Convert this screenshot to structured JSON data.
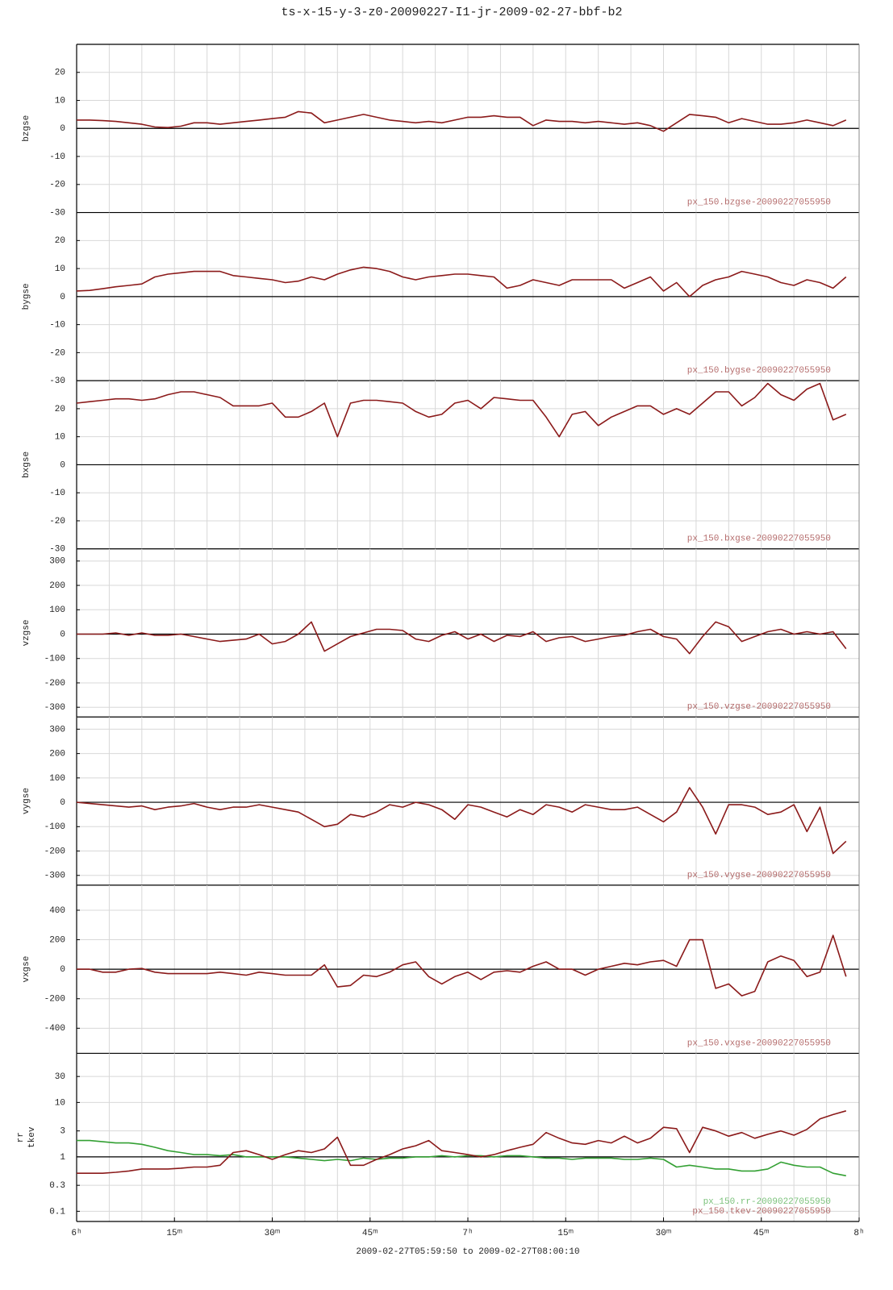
{
  "title": "ts-x-15-y-3-z0-20090227-I1-jr-2009-02-27-bbf-b2",
  "xaxis": {
    "label": "2009-02-27T05:59:50 to 2009-02-27T08:00:10",
    "xlim": [
      0,
      120
    ],
    "xticks": [
      {
        "value": 0,
        "label": "6ʰ"
      },
      {
        "value": 15,
        "label": "15ᵐ"
      },
      {
        "value": 30,
        "label": "30ᵐ"
      },
      {
        "value": 45,
        "label": "45ᵐ"
      },
      {
        "value": 60,
        "label": "7ʰ"
      },
      {
        "value": 75,
        "label": "15ᵐ"
      },
      {
        "value": 90,
        "label": "30ᵐ"
      },
      {
        "value": 105,
        "label": "45ᵐ"
      },
      {
        "value": 120,
        "label": "8ʰ"
      }
    ],
    "minor_xticks": [
      0,
      5,
      10,
      15,
      20,
      25,
      30,
      35,
      40,
      45,
      50,
      55,
      60,
      65,
      70,
      75,
      80,
      85,
      90,
      95,
      100,
      105,
      110,
      115,
      120
    ],
    "x": [
      0,
      2,
      4,
      6,
      8,
      10,
      12,
      14,
      16,
      18,
      20,
      22,
      24,
      26,
      28,
      30,
      32,
      34,
      36,
      38,
      40,
      42,
      44,
      46,
      48,
      50,
      52,
      54,
      56,
      58,
      60,
      62,
      64,
      66,
      68,
      70,
      72,
      74,
      76,
      78,
      80,
      82,
      84,
      86,
      88,
      90,
      92,
      94,
      96,
      98,
      100,
      102,
      104,
      106,
      108,
      110,
      112,
      114,
      116,
      118
    ]
  },
  "chart_data": [
    {
      "type": "line",
      "ylim": [
        -30,
        30
      ],
      "yticks": [
        -30,
        -20,
        -10,
        0,
        10,
        20
      ],
      "baseline": 0,
      "grid": true,
      "log": false,
      "series": [
        {
          "name": "bzgse",
          "label": "px_150.bzgse-20090227055950",
          "color": "#8b1a1a",
          "values": [
            3,
            3,
            2.8,
            2.5,
            2,
            1.5,
            0.5,
            0.3,
            0.8,
            2,
            2,
            1.5,
            2,
            2.5,
            3,
            3.5,
            4,
            6,
            5.5,
            2,
            3,
            4,
            5,
            4,
            3,
            2.5,
            2,
            2.5,
            2,
            3,
            4,
            4,
            4.5,
            4,
            4,
            1,
            3,
            2.5,
            2.5,
            2,
            2.5,
            2,
            1.5,
            2,
            1,
            -1,
            2,
            5,
            4.5,
            4,
            2,
            3.5,
            2.5,
            1.5,
            1.5,
            2,
            3,
            2,
            1,
            3
          ]
        }
      ]
    },
    {
      "type": "line",
      "ylim": [
        -30,
        30
      ],
      "yticks": [
        -30,
        -20,
        -10,
        0,
        10,
        20
      ],
      "baseline": 0,
      "grid": true,
      "log": false,
      "series": [
        {
          "name": "bygse",
          "label": "px_150.bygse-20090227055950",
          "color": "#8b1a1a",
          "values": [
            2,
            2.2,
            2.8,
            3.5,
            4,
            4.5,
            7,
            8,
            8.5,
            9,
            9,
            9,
            7.5,
            7,
            6.5,
            6,
            5,
            5.5,
            7,
            6,
            8,
            9.5,
            10.5,
            10,
            9,
            7,
            6,
            7,
            7.5,
            8,
            8,
            7.5,
            7,
            3,
            4,
            6,
            5,
            4,
            6,
            6,
            6,
            6,
            3,
            5,
            7,
            2,
            5,
            0,
            4,
            6,
            7,
            9,
            8,
            7,
            5,
            4,
            6,
            5,
            3,
            7
          ]
        }
      ]
    },
    {
      "type": "line",
      "ylim": [
        -30,
        30
      ],
      "yticks": [
        -30,
        -20,
        -10,
        0,
        10,
        20
      ],
      "baseline": 0,
      "grid": true,
      "log": false,
      "series": [
        {
          "name": "bxgse",
          "label": "px_150.bxgse-20090227055950",
          "color": "#8b1a1a",
          "values": [
            22,
            22.5,
            23,
            23.5,
            23.5,
            23,
            23.5,
            25,
            26,
            26,
            25,
            24,
            21,
            21,
            21,
            22,
            17,
            17,
            19,
            22,
            10,
            22,
            23,
            23,
            22.5,
            22,
            19,
            17,
            18,
            22,
            23,
            20,
            24,
            23.5,
            23,
            23,
            17,
            10,
            18,
            19,
            14,
            17,
            19,
            21,
            21,
            18,
            20,
            18,
            22,
            26,
            26,
            21,
            24,
            29,
            25,
            23,
            27,
            29,
            16,
            18
          ]
        }
      ]
    },
    {
      "type": "line",
      "ylim": [
        -340,
        350
      ],
      "yticks": [
        -300,
        -200,
        -100,
        0,
        100,
        200,
        300
      ],
      "baseline": 0,
      "grid": true,
      "log": false,
      "series": [
        {
          "name": "vzgse",
          "label": "px_150.vzgse-20090227055950",
          "color": "#8b1a1a",
          "values": [
            0,
            0,
            0,
            5,
            -5,
            5,
            -5,
            -5,
            0,
            -10,
            -20,
            -30,
            -25,
            -20,
            0,
            -40,
            -30,
            0,
            50,
            -70,
            -40,
            -10,
            5,
            20,
            20,
            15,
            -20,
            -30,
            -5,
            10,
            -20,
            0,
            -30,
            -5,
            -10,
            10,
            -30,
            -15,
            -10,
            -30,
            -20,
            -10,
            -5,
            10,
            20,
            -10,
            -20,
            -80,
            -10,
            50,
            30,
            -30,
            -10,
            10,
            20,
            0,
            10,
            0,
            10,
            -60
          ]
        }
      ]
    },
    {
      "type": "line",
      "ylim": [
        -340,
        350
      ],
      "yticks": [
        -300,
        -200,
        -100,
        0,
        100,
        200,
        300
      ],
      "baseline": 0,
      "grid": true,
      "log": false,
      "series": [
        {
          "name": "vygse",
          "label": "px_150.vygse-20090227055950",
          "color": "#8b1a1a",
          "values": [
            0,
            -5,
            -10,
            -15,
            -20,
            -15,
            -30,
            -20,
            -15,
            -5,
            -20,
            -30,
            -20,
            -20,
            -10,
            -20,
            -30,
            -40,
            -70,
            -100,
            -90,
            -50,
            -60,
            -40,
            -10,
            -20,
            0,
            -10,
            -30,
            -70,
            -10,
            -20,
            -40,
            -60,
            -30,
            -50,
            -10,
            -20,
            -40,
            -10,
            -20,
            -30,
            -30,
            -20,
            -50,
            -80,
            -40,
            60,
            -20,
            -130,
            -10,
            -10,
            -20,
            -50,
            -40,
            -10,
            -120,
            -20,
            -210,
            -160
          ]
        }
      ]
    },
    {
      "type": "line",
      "ylim": [
        -570,
        570
      ],
      "yticks": [
        -400,
        -200,
        0,
        200,
        400
      ],
      "baseline": 0,
      "grid": true,
      "log": false,
      "series": [
        {
          "name": "vxgse",
          "label": "px_150.vxgse-20090227055950",
          "color": "#8b1a1a",
          "values": [
            0,
            0,
            -20,
            -20,
            0,
            5,
            -20,
            -30,
            -30,
            -30,
            -30,
            -20,
            -30,
            -40,
            -20,
            -30,
            -40,
            -40,
            -40,
            30,
            -120,
            -110,
            -40,
            -50,
            -20,
            30,
            50,
            -50,
            -100,
            -50,
            -20,
            -70,
            -20,
            -10,
            -20,
            20,
            50,
            0,
            0,
            -40,
            0,
            20,
            40,
            30,
            50,
            60,
            20,
            200,
            200,
            -130,
            -100,
            -180,
            -150,
            50,
            90,
            60,
            -50,
            -20,
            230,
            -50
          ]
        }
      ]
    },
    {
      "type": "line",
      "ylim": [
        0.065,
        80
      ],
      "yticks": [
        0.1,
        0.3,
        1,
        3,
        10,
        30
      ],
      "baseline": 1,
      "grid": true,
      "log": true,
      "series": [
        {
          "name": "rr",
          "label": "px_150.rr-20090227055950",
          "color": "#33a033",
          "values": [
            2,
            2,
            1.9,
            1.8,
            1.8,
            1.7,
            1.5,
            1.3,
            1.2,
            1.1,
            1.1,
            1.05,
            1.1,
            1,
            1,
            1,
            1,
            0.95,
            0.9,
            0.85,
            0.9,
            0.85,
            0.95,
            0.9,
            0.95,
            0.95,
            1,
            1,
            1.05,
            1,
            1.05,
            1.05,
            1,
            1.05,
            1.05,
            1,
            0.95,
            0.95,
            0.9,
            0.95,
            0.95,
            0.95,
            0.9,
            0.9,
            0.95,
            0.9,
            0.65,
            0.7,
            0.65,
            0.6,
            0.6,
            0.55,
            0.55,
            0.6,
            0.8,
            0.7,
            0.65,
            0.65,
            0.5,
            0.45
          ]
        },
        {
          "name": "tkev",
          "label": "px_150.tkev-20090227055950",
          "color": "#8b1a1a",
          "values": [
            0.5,
            0.5,
            0.5,
            0.52,
            0.55,
            0.6,
            0.6,
            0.6,
            0.62,
            0.65,
            0.65,
            0.7,
            1.2,
            1.3,
            1.1,
            0.9,
            1.1,
            1.3,
            1.2,
            1.4,
            2.3,
            0.7,
            0.7,
            0.9,
            1.1,
            1.4,
            1.6,
            2,
            1.3,
            1.2,
            1.1,
            1,
            1.1,
            1.3,
            1.5,
            1.7,
            2.8,
            2.2,
            1.8,
            1.7,
            2,
            1.8,
            2.4,
            1.8,
            2.2,
            3.5,
            3.3,
            1.2,
            3.5,
            3,
            2.4,
            2.8,
            2.2,
            2.6,
            3,
            2.5,
            3.2,
            5,
            6,
            7
          ]
        }
      ]
    }
  ]
}
